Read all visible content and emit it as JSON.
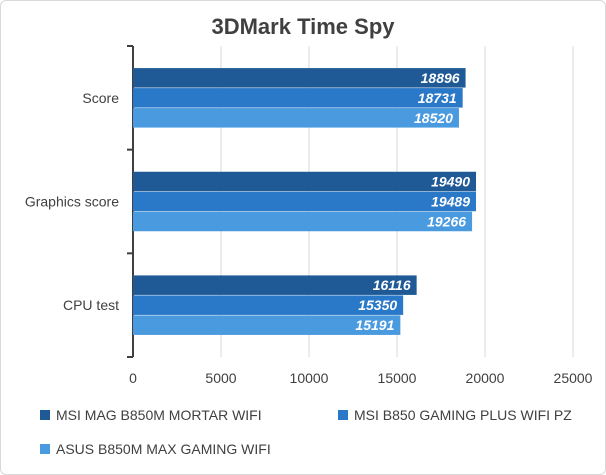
{
  "chart_data": {
    "type": "bar",
    "orientation": "horizontal",
    "title": "3DMark Time Spy",
    "categories": [
      "Score",
      "Graphics score",
      "CPU test"
    ],
    "series": [
      {
        "name": "MSI MAG B850M MORTAR WIFI",
        "color": "#1f5a96",
        "values": [
          18896,
          19490,
          16116
        ]
      },
      {
        "name": "MSI B850 GAMING PLUS WIFI PZ",
        "color": "#2a78c8",
        "values": [
          18731,
          19489,
          15350
        ]
      },
      {
        "name": "ASUS B850M MAX GAMING WIFI",
        "color": "#4a9ae0",
        "values": [
          18520,
          19266,
          15191
        ]
      }
    ],
    "xlim": [
      0,
      25000
    ],
    "xticks": [
      0,
      5000,
      10000,
      15000,
      20000,
      25000
    ],
    "grid": true,
    "legend_position": "bottom"
  }
}
